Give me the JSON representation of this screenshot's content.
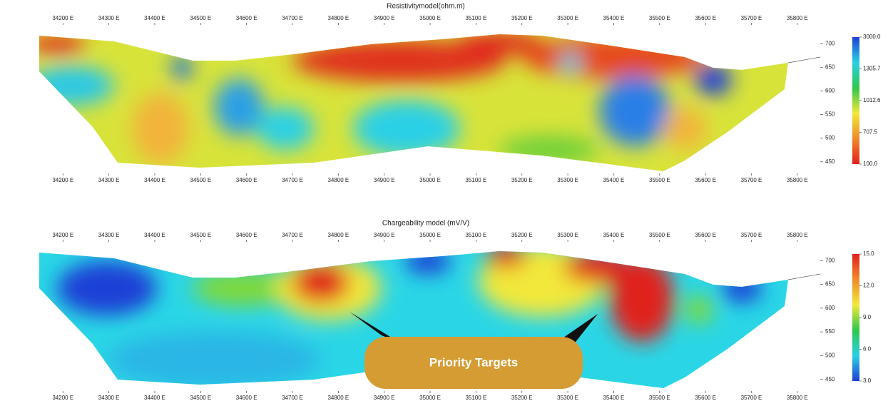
{
  "chart_data": [
    {
      "type": "contour",
      "title": "Resistivitymodel(ohm.m)",
      "xlim": [
        34125,
        35850
      ],
      "xticks": [
        {
          "value": 34200,
          "label": "34200 E"
        },
        {
          "value": 34300,
          "label": "34300 E"
        },
        {
          "value": 34400,
          "label": "34400 E"
        },
        {
          "value": 34500,
          "label": "34500 E"
        },
        {
          "value": 34600,
          "label": "34600 E"
        },
        {
          "value": 34700,
          "label": "34700 E"
        },
        {
          "value": 34800,
          "label": "34800 E"
        },
        {
          "value": 34900,
          "label": "34900 E"
        },
        {
          "value": 35000,
          "label": "35000 E"
        },
        {
          "value": 35100,
          "label": "35100 E"
        },
        {
          "value": 35200,
          "label": "35200 E"
        },
        {
          "value": 35300,
          "label": "35300 E"
        },
        {
          "value": 35400,
          "label": "35400 E"
        },
        {
          "value": 35500,
          "label": "35500 E"
        },
        {
          "value": 35600,
          "label": "35600 E"
        },
        {
          "value": 35700,
          "label": "35700 E"
        },
        {
          "value": 35800,
          "label": "35800 E"
        }
      ],
      "ylim": [
        430,
        735
      ],
      "yticks": [
        450,
        500,
        550,
        600,
        650,
        700
      ],
      "colorbar": {
        "ticks": [
          {
            "value": 3000,
            "label": "3000.0"
          },
          {
            "value": 1305.7,
            "label": "1305.7"
          },
          {
            "value": 1012.6,
            "label": "1012.6"
          },
          {
            "value": 707.5,
            "label": "707.5"
          },
          {
            "value": 100,
            "label": "100.0"
          }
        ],
        "colors": [
          "#1f3fd6",
          "#2ad0e6",
          "#2ec84a",
          "#f2e83a",
          "#f08a2a",
          "#e0201c"
        ]
      }
    },
    {
      "type": "contour",
      "title": "Chargeability model (mV/V)",
      "xlim": [
        34125,
        35850
      ],
      "xticks": [
        {
          "value": 34200,
          "label": "34200 E"
        },
        {
          "value": 34300,
          "label": "34300 E"
        },
        {
          "value": 34400,
          "label": "34400 E"
        },
        {
          "value": 34500,
          "label": "34500 E"
        },
        {
          "value": 34600,
          "label": "34600 E"
        },
        {
          "value": 34700,
          "label": "34700 E"
        },
        {
          "value": 34800,
          "label": "34800 E"
        },
        {
          "value": 34900,
          "label": "34900 E"
        },
        {
          "value": 35000,
          "label": "35000 E"
        },
        {
          "value": 35100,
          "label": "35100 E"
        },
        {
          "value": 35200,
          "label": "35200 E"
        },
        {
          "value": 35300,
          "label": "35300 E"
        },
        {
          "value": 35400,
          "label": "35400 E"
        },
        {
          "value": 35500,
          "label": "35500 E"
        },
        {
          "value": 35600,
          "label": "35600 E"
        },
        {
          "value": 35700,
          "label": "35700 E"
        },
        {
          "value": 35800,
          "label": "35800 E"
        }
      ],
      "ylim": [
        430,
        735
      ],
      "yticks": [
        450,
        500,
        550,
        600,
        650,
        700
      ],
      "colorbar": {
        "ticks": [
          {
            "value": 15,
            "label": "15.0"
          },
          {
            "value": 12,
            "label": "12.0"
          },
          {
            "value": 9,
            "label": "9.0"
          },
          {
            "value": 6,
            "label": "6.0"
          },
          {
            "value": 3,
            "label": "3.0"
          }
        ],
        "colors": [
          "#e0201c",
          "#f08a2a",
          "#f2e83a",
          "#2ec84a",
          "#2ad0e6",
          "#1f3fd6"
        ]
      },
      "annotation": "Priority Targets"
    }
  ]
}
